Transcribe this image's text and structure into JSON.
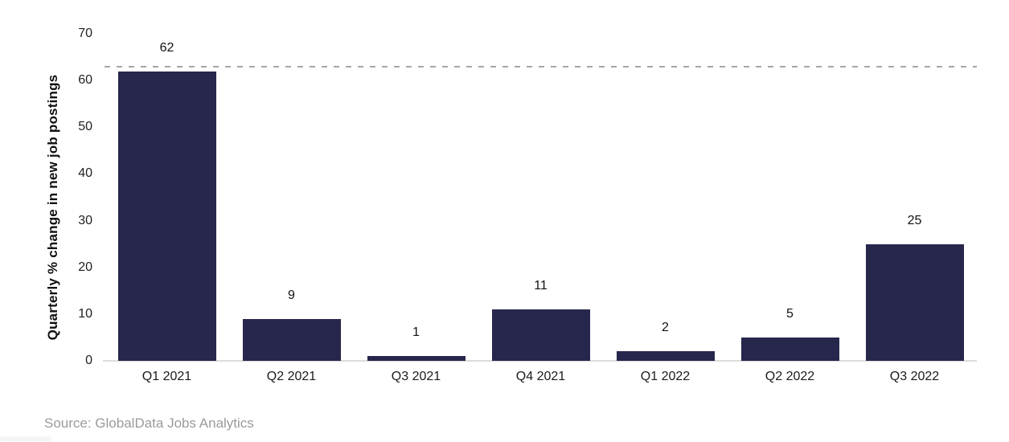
{
  "chart_data": {
    "type": "bar",
    "categories": [
      "Q1 2021",
      "Q2 2021",
      "Q3 2021",
      "Q4 2021",
      "Q1 2022",
      "Q2 2022",
      "Q3 2022"
    ],
    "values": [
      62,
      9,
      1,
      11,
      2,
      5,
      25
    ],
    "data_labels": [
      "62",
      "9",
      "1",
      "11",
      "2",
      "5",
      "25"
    ],
    "title": "",
    "xlabel": "",
    "ylabel": "Quarterly % change in new job postings",
    "ylim": [
      0,
      70
    ],
    "yticks": [
      0,
      10,
      20,
      30,
      40,
      50,
      60,
      70
    ],
    "grid": false,
    "legend_position": "none",
    "reference_line": {
      "value": 63,
      "style": "dashed"
    },
    "colors": {
      "bar": "#27264C",
      "reference_line": "#a6a6a6",
      "axis_line": "#dcdcdc",
      "tick_label": "#1f1f1f",
      "data_label": "#111111",
      "source_text": "#9b9b9b"
    }
  },
  "footer": {
    "source": "Source: GlobalData Jobs Analytics"
  }
}
